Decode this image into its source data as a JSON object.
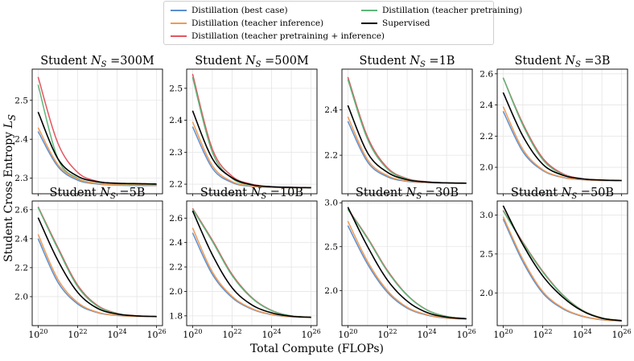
{
  "figure": {
    "x_axis_label": "Total Compute (FLOPs)",
    "y_axis_label": "Student Cross Entropy L_S"
  },
  "legend": {
    "position": "top-center",
    "entries": [
      {
        "label": "Distillation (best case)",
        "color": "#5b8fd1"
      },
      {
        "label": "Distillation (teacher inference)",
        "color": "#f09a55"
      },
      {
        "label": "Distillation (teacher pretraining + inference)",
        "color": "#e4555e"
      },
      {
        "label": "Distillation (teacher pretraining)",
        "color": "#5fb57a"
      },
      {
        "label": "Supervised",
        "color": "#000000"
      }
    ]
  },
  "chart_data": [
    {
      "type": "line",
      "title": "Student N_S =300M",
      "xscale": "log",
      "xlim": [
        "1e20",
        "1e26"
      ],
      "ylim": [
        2.26,
        2.58
      ],
      "yticks": [
        2.3,
        2.4,
        2.5
      ],
      "grid": true,
      "x": [
        "1e20",
        "1e21",
        "1e22",
        "1e23",
        "1e24",
        "1e25",
        "1e26"
      ],
      "series": [
        {
          "name": "Distillation (best case)",
          "values": [
            2.42,
            2.33,
            2.295,
            2.285,
            2.282,
            2.281,
            2.281
          ]
        },
        {
          "name": "Distillation (teacher inference)",
          "values": [
            2.43,
            2.335,
            2.298,
            2.286,
            2.283,
            2.282,
            2.281
          ]
        },
        {
          "name": "Distillation (teacher pretraining + inference)",
          "values": [
            2.56,
            2.39,
            2.315,
            2.292,
            2.286,
            2.284,
            2.283
          ]
        },
        {
          "name": "Distillation (teacher pretraining)",
          "values": [
            2.54,
            2.35,
            2.3,
            2.287,
            2.284,
            2.283,
            2.282
          ]
        },
        {
          "name": "Supervised",
          "values": [
            2.47,
            2.35,
            2.305,
            2.291,
            2.287,
            2.286,
            2.285
          ]
        }
      ]
    },
    {
      "type": "line",
      "title": "Student N_S =500M",
      "xscale": "log",
      "xlim": [
        "1e20",
        "1e26"
      ],
      "ylim": [
        2.17,
        2.56
      ],
      "yticks": [
        2.2,
        2.3,
        2.4,
        2.5
      ],
      "grid": true,
      "x": [
        "1e20",
        "1e21",
        "1e22",
        "1e23",
        "1e24",
        "1e25",
        "1e26"
      ],
      "series": [
        {
          "name": "Distillation (best case)",
          "values": [
            2.38,
            2.25,
            2.205,
            2.193,
            2.19,
            2.189,
            2.189
          ]
        },
        {
          "name": "Distillation (teacher inference)",
          "values": [
            2.395,
            2.258,
            2.208,
            2.194,
            2.19,
            2.189,
            2.189
          ]
        },
        {
          "name": "Distillation (teacher pretraining + inference)",
          "values": [
            2.545,
            2.31,
            2.225,
            2.2,
            2.192,
            2.19,
            2.189
          ]
        },
        {
          "name": "Distillation (teacher pretraining)",
          "values": [
            2.535,
            2.3,
            2.218,
            2.197,
            2.191,
            2.189,
            2.189
          ]
        },
        {
          "name": "Supervised",
          "values": [
            2.43,
            2.28,
            2.22,
            2.198,
            2.192,
            2.19,
            2.189
          ]
        }
      ]
    },
    {
      "type": "line",
      "title": "Student N_S =1B",
      "xscale": "log",
      "xlim": [
        "1e20",
        "1e26"
      ],
      "ylim": [
        2.03,
        2.58
      ],
      "yticks": [
        2.2,
        2.4
      ],
      "grid": true,
      "x": [
        "1e20",
        "1e21",
        "1e22",
        "1e23",
        "1e24",
        "1e25",
        "1e26"
      ],
      "series": [
        {
          "name": "Distillation (best case)",
          "values": [
            2.35,
            2.17,
            2.105,
            2.085,
            2.079,
            2.077,
            2.076
          ]
        },
        {
          "name": "Distillation (teacher inference)",
          "values": [
            2.37,
            2.18,
            2.11,
            2.087,
            2.08,
            2.077,
            2.076
          ]
        },
        {
          "name": "Distillation (teacher pretraining + inference)",
          "values": [
            2.545,
            2.28,
            2.145,
            2.097,
            2.083,
            2.078,
            2.077
          ]
        },
        {
          "name": "Distillation (teacher pretraining)",
          "values": [
            2.535,
            2.27,
            2.14,
            2.095,
            2.082,
            2.078,
            2.076
          ]
        },
        {
          "name": "Supervised",
          "values": [
            2.42,
            2.21,
            2.125,
            2.092,
            2.082,
            2.078,
            2.077
          ]
        }
      ]
    },
    {
      "type": "line",
      "title": "Student N_S =3B",
      "xscale": "log",
      "xlim": [
        "1e20",
        "1e26"
      ],
      "ylim": [
        1.83,
        2.63
      ],
      "yticks": [
        2.0,
        2.2,
        2.4,
        2.6
      ],
      "grid": true,
      "x": [
        "1e20",
        "1e21",
        "1e22",
        "1e23",
        "1e24",
        "1e25",
        "1e26"
      ],
      "series": [
        {
          "name": "Distillation (best case)",
          "values": [
            2.36,
            2.1,
            1.98,
            1.935,
            1.92,
            1.915,
            1.914
          ]
        },
        {
          "name": "Distillation (teacher inference)",
          "values": [
            2.39,
            2.115,
            1.985,
            1.937,
            1.921,
            1.916,
            1.914
          ]
        },
        {
          "name": "Distillation (teacher pretraining + inference)",
          "values": [
            2.575,
            2.28,
            2.06,
            1.96,
            1.927,
            1.918,
            1.915
          ]
        },
        {
          "name": "Distillation (teacher pretraining)",
          "values": [
            2.575,
            2.27,
            2.05,
            1.955,
            1.925,
            1.917,
            1.914
          ]
        },
        {
          "name": "Supervised",
          "values": [
            2.48,
            2.2,
            2.02,
            1.95,
            1.926,
            1.918,
            1.915
          ]
        }
      ]
    },
    {
      "type": "line",
      "title": "Student N_S =5B",
      "xscale": "log",
      "xlim": [
        "1e20",
        "1e26"
      ],
      "ylim": [
        1.8,
        2.66
      ],
      "yticks": [
        2.0,
        2.2,
        2.4,
        2.6
      ],
      "grid": true,
      "x": [
        "1e20",
        "1e21",
        "1e22",
        "1e23",
        "1e24",
        "1e25",
        "1e26"
      ],
      "series": [
        {
          "name": "Distillation (best case)",
          "values": [
            2.4,
            2.1,
            1.95,
            1.89,
            1.87,
            1.864,
            1.862
          ]
        },
        {
          "name": "Distillation (teacher inference)",
          "values": [
            2.43,
            2.12,
            1.96,
            1.893,
            1.871,
            1.864,
            1.862
          ]
        },
        {
          "name": "Distillation (teacher pretraining + inference)",
          "values": [
            2.62,
            2.34,
            2.08,
            1.94,
            1.885,
            1.868,
            1.863
          ]
        },
        {
          "name": "Distillation (teacher pretraining)",
          "values": [
            2.615,
            2.33,
            2.07,
            1.935,
            1.883,
            1.867,
            1.862
          ]
        },
        {
          "name": "Supervised",
          "values": [
            2.545,
            2.25,
            2.03,
            1.92,
            1.88,
            1.867,
            1.863
          ]
        }
      ]
    },
    {
      "type": "line",
      "title": "Student N_S =10B",
      "xscale": "log",
      "xlim": [
        "1e20",
        "1e26"
      ],
      "ylim": [
        1.72,
        2.74
      ],
      "yticks": [
        1.8,
        2.0,
        2.2,
        2.4,
        2.6
      ],
      "grid": true,
      "x": [
        "1e20",
        "1e21",
        "1e22",
        "1e23",
        "1e24",
        "1e25",
        "1e26"
      ],
      "series": [
        {
          "name": "Distillation (best case)",
          "values": [
            2.48,
            2.14,
            1.95,
            1.855,
            1.81,
            1.792,
            1.787
          ]
        },
        {
          "name": "Distillation (teacher inference)",
          "values": [
            2.52,
            2.16,
            1.96,
            1.86,
            1.812,
            1.793,
            1.787
          ]
        },
        {
          "name": "Distillation (teacher pretraining + inference)",
          "values": [
            2.68,
            2.42,
            2.14,
            1.95,
            1.845,
            1.8,
            1.789
          ]
        },
        {
          "name": "Distillation (teacher pretraining)",
          "values": [
            2.675,
            2.41,
            2.13,
            1.945,
            1.843,
            1.8,
            1.788
          ]
        },
        {
          "name": "Supervised",
          "values": [
            2.66,
            2.3,
            2.03,
            1.89,
            1.825,
            1.797,
            1.788
          ]
        }
      ]
    },
    {
      "type": "line",
      "title": "Student N_S =30B",
      "xscale": "log",
      "xlim": [
        "1e20",
        "1e26"
      ],
      "ylim": [
        1.6,
        3.02
      ],
      "yticks": [
        2.0,
        2.5,
        3.0
      ],
      "grid": true,
      "x": [
        "1e20",
        "1e21",
        "1e22",
        "1e23",
        "1e24",
        "1e25",
        "1e26"
      ],
      "series": [
        {
          "name": "Distillation (best case)",
          "values": [
            2.74,
            2.3,
            1.98,
            1.8,
            1.72,
            1.685,
            1.675
          ]
        },
        {
          "name": "Distillation (teacher inference)",
          "values": [
            2.79,
            2.33,
            2.0,
            1.81,
            1.725,
            1.687,
            1.675
          ]
        },
        {
          "name": "Distillation (teacher pretraining + inference)",
          "values": [
            2.93,
            2.6,
            2.23,
            1.95,
            1.78,
            1.705,
            1.68
          ]
        },
        {
          "name": "Distillation (teacher pretraining)",
          "values": [
            2.925,
            2.59,
            2.22,
            1.945,
            1.778,
            1.704,
            1.679
          ]
        },
        {
          "name": "Supervised",
          "values": [
            2.95,
            2.5,
            2.12,
            1.88,
            1.75,
            1.697,
            1.678
          ]
        }
      ]
    },
    {
      "type": "line",
      "title": "Student N_S =50B",
      "xscale": "log",
      "xlim": [
        "1e20",
        "1e26"
      ],
      "ylim": [
        1.58,
        3.18
      ],
      "yticks": [
        2.0,
        2.5,
        3.0
      ],
      "grid": true,
      "x": [
        "1e20",
        "1e21",
        "1e22",
        "1e23",
        "1e24",
        "1e25",
        "1e26"
      ],
      "series": [
        {
          "name": "Distillation (best case)",
          "values": [
            2.95,
            2.4,
            2.0,
            1.8,
            1.7,
            1.655,
            1.64
          ]
        },
        {
          "name": "Distillation (teacher inference)",
          "values": [
            2.98,
            2.43,
            2.02,
            1.81,
            1.705,
            1.657,
            1.64
          ]
        },
        {
          "name": "Distillation (teacher pretraining + inference)",
          "values": [
            3.06,
            2.65,
            2.28,
            1.98,
            1.78,
            1.68,
            1.645
          ]
        },
        {
          "name": "Distillation (teacher pretraining)",
          "values": [
            3.055,
            2.64,
            2.27,
            1.975,
            1.778,
            1.679,
            1.645
          ]
        },
        {
          "name": "Supervised",
          "values": [
            3.12,
            2.62,
            2.22,
            1.95,
            1.77,
            1.675,
            1.643
          ]
        }
      ]
    }
  ]
}
